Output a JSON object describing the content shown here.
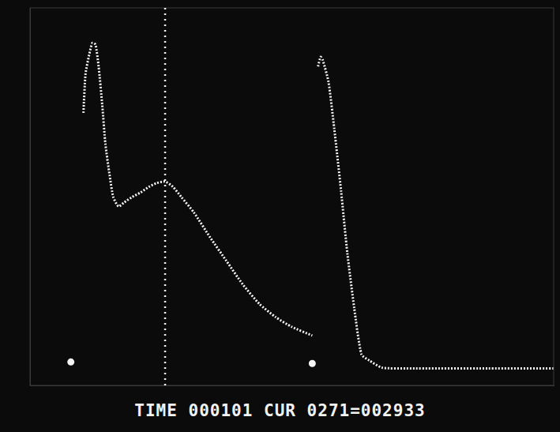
{
  "chart_data": {
    "type": "line",
    "annotation": "TIME 000101 CUR 0271=002933",
    "xlim": [
      0,
      100
    ],
    "ylim": [
      0,
      100
    ],
    "tick_labels": false,
    "grid": false,
    "cursor_x": 25.8,
    "series": [
      {
        "color": "#f4f4f4",
        "line_style": "dotted",
        "x": [
          10.2,
          10.6,
          11.3,
          11.9,
          12.5,
          13.1,
          13.8,
          14.4,
          15.2,
          15.9,
          16.9,
          18,
          19.5,
          21.1,
          22.7,
          24.2,
          25.8,
          27.3,
          28.9,
          31.3,
          34.4,
          37.5,
          40.6,
          43.8,
          46.9,
          50,
          53.9
        ],
        "values": [
          72.2,
          82.5,
          87.6,
          90.7,
          90.3,
          84.5,
          74.2,
          63.9,
          55.7,
          49.9,
          47.4,
          48.5,
          49.9,
          51.1,
          52.6,
          53.6,
          54,
          52.6,
          49.9,
          45.8,
          39.2,
          33,
          26.8,
          21.6,
          18.1,
          15.5,
          13.2
        ]
      },
      {
        "color": "#f4f4f4",
        "line_style": "dotted",
        "x": [
          55,
          55.5,
          55.9,
          57,
          58.1,
          59.4,
          60.6,
          61.9,
          63.3,
          64.8,
          67.2,
          71.9,
          87.5,
          100
        ],
        "values": [
          84.5,
          87,
          86.2,
          80.4,
          68,
          51.5,
          35,
          20.6,
          8.2,
          6.6,
          4.7,
          4.5,
          4.5,
          4.5
        ]
      },
      {
        "color": "#f4f4f4",
        "line_style": "none",
        "marker": "dot",
        "x": [
          7.8,
          53.9
        ],
        "values": [
          6.2,
          5.8
        ]
      }
    ]
  }
}
